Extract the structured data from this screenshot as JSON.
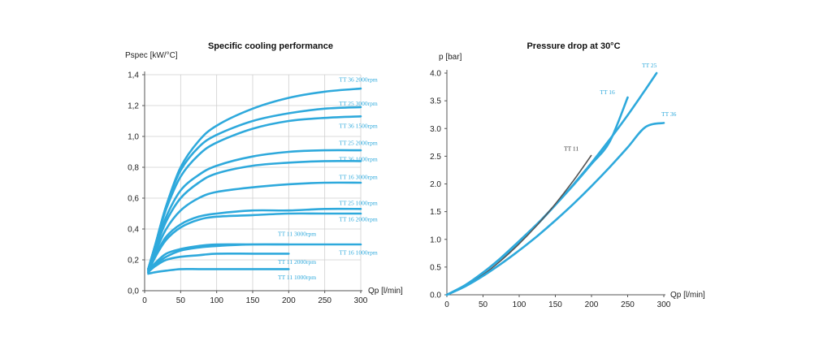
{
  "chart_data": [
    {
      "type": "line",
      "title": "Specific cooling performance",
      "ylabel": "Pspec [kW/°C]",
      "xlabel": "Qp [l/min]",
      "xlim": [
        0,
        300
      ],
      "ylim": [
        0,
        1.4
      ],
      "xticks": [
        "0",
        "50",
        "100",
        "150",
        "200",
        "250",
        "300"
      ],
      "yticks": [
        "0,0",
        "0,2",
        "0,4",
        "0,6",
        "0,8",
        "1,0",
        "1,2",
        "1,4"
      ],
      "grid": true,
      "series_color": "#2ea9dc",
      "series": [
        {
          "name": "TT 36 2000rpm",
          "x": [
            5,
            15,
            30,
            50,
            75,
            100,
            150,
            200,
            250,
            300
          ],
          "y": [
            0.14,
            0.3,
            0.55,
            0.8,
            0.97,
            1.07,
            1.18,
            1.25,
            1.29,
            1.31
          ]
        },
        {
          "name": "TT 25 3000rpm",
          "x": [
            5,
            15,
            30,
            50,
            75,
            100,
            150,
            200,
            250,
            300
          ],
          "y": [
            0.14,
            0.3,
            0.55,
            0.78,
            0.93,
            1.01,
            1.1,
            1.15,
            1.18,
            1.19
          ]
        },
        {
          "name": "TT 36 1500rpm",
          "x": [
            5,
            15,
            30,
            50,
            75,
            100,
            150,
            200,
            250,
            300
          ],
          "y": [
            0.14,
            0.3,
            0.53,
            0.74,
            0.88,
            0.96,
            1.05,
            1.1,
            1.12,
            1.13
          ]
        },
        {
          "name": "TT 25 2000rpm",
          "x": [
            5,
            15,
            30,
            50,
            75,
            100,
            150,
            200,
            250,
            300
          ],
          "y": [
            0.14,
            0.28,
            0.48,
            0.65,
            0.75,
            0.81,
            0.87,
            0.9,
            0.91,
            0.91
          ]
        },
        {
          "name": "TT 36 1000rpm",
          "x": [
            5,
            15,
            30,
            50,
            75,
            100,
            150,
            200,
            250,
            300
          ],
          "y": [
            0.14,
            0.27,
            0.45,
            0.6,
            0.7,
            0.76,
            0.81,
            0.83,
            0.84,
            0.84
          ]
        },
        {
          "name": "TT 16 3000rpm",
          "x": [
            5,
            15,
            30,
            50,
            75,
            100,
            150,
            200,
            250,
            300
          ],
          "y": [
            0.13,
            0.25,
            0.4,
            0.52,
            0.6,
            0.64,
            0.67,
            0.69,
            0.7,
            0.7
          ]
        },
        {
          "name": "TT 25 1000rpm",
          "x": [
            5,
            15,
            30,
            50,
            75,
            100,
            150,
            200,
            250,
            300
          ],
          "y": [
            0.13,
            0.23,
            0.35,
            0.43,
            0.48,
            0.5,
            0.52,
            0.52,
            0.53,
            0.53
          ]
        },
        {
          "name": "TT 16 2000rpm",
          "x": [
            5,
            15,
            30,
            50,
            75,
            100,
            150,
            200,
            250,
            300
          ],
          "y": [
            0.12,
            0.22,
            0.33,
            0.41,
            0.46,
            0.48,
            0.49,
            0.5,
            0.5,
            0.5
          ]
        },
        {
          "name": "TT 11 3000rpm",
          "x": [
            5,
            15,
            30,
            50,
            75,
            100,
            150,
            200
          ],
          "y": [
            0.12,
            0.18,
            0.24,
            0.27,
            0.29,
            0.3,
            0.3,
            0.3
          ]
        },
        {
          "name": "TT 16 1000rpm",
          "x": [
            5,
            15,
            30,
            50,
            75,
            100,
            150,
            200,
            250,
            300
          ],
          "y": [
            0.12,
            0.17,
            0.22,
            0.26,
            0.28,
            0.29,
            0.3,
            0.3,
            0.3,
            0.3
          ]
        },
        {
          "name": "TT 11 2000rpm",
          "x": [
            5,
            15,
            30,
            50,
            75,
            100,
            150,
            200
          ],
          "y": [
            0.12,
            0.16,
            0.2,
            0.22,
            0.23,
            0.24,
            0.24,
            0.24
          ]
        },
        {
          "name": "TT 11 1000rpm",
          "x": [
            5,
            15,
            30,
            50,
            75,
            100,
            150,
            200
          ],
          "y": [
            0.11,
            0.12,
            0.13,
            0.14,
            0.14,
            0.14,
            0.14,
            0.14
          ]
        }
      ]
    },
    {
      "type": "line",
      "title": "Pressure drop at 30°C",
      "ylabel": "p [bar]",
      "xlabel": "Qp [l/min]",
      "xlim": [
        0,
        300
      ],
      "ylim": [
        0,
        4.0
      ],
      "xticks": [
        "0",
        "50",
        "100",
        "150",
        "200",
        "250",
        "300"
      ],
      "yticks": [
        "0.0",
        "0.5",
        "1.0",
        "1.5",
        "2.0",
        "2.5",
        "3.0",
        "3.5",
        "4.0"
      ],
      "grid": false,
      "series_color": "#2ea9dc",
      "series": [
        {
          "name": "TT 25",
          "x": [
            0,
            25,
            50,
            75,
            100,
            125,
            150,
            175,
            200,
            225,
            250,
            275,
            290
          ],
          "y": [
            0,
            0.17,
            0.4,
            0.66,
            0.95,
            1.27,
            1.62,
            1.99,
            2.38,
            2.8,
            3.24,
            3.71,
            4.0
          ]
        },
        {
          "name": "TT 16",
          "x": [
            0,
            25,
            50,
            75,
            100,
            125,
            150,
            175,
            200,
            225,
            250
          ],
          "y": [
            0,
            0.17,
            0.4,
            0.67,
            0.97,
            1.28,
            1.62,
            1.98,
            2.36,
            2.76,
            3.56
          ]
        },
        {
          "name": "TT 11",
          "x": [
            0,
            25,
            50,
            75,
            100,
            125,
            150,
            175,
            200
          ],
          "y": [
            0,
            0.15,
            0.36,
            0.62,
            0.92,
            1.26,
            1.64,
            2.06,
            2.52
          ]
        },
        {
          "name": "TT 36",
          "x": [
            0,
            25,
            50,
            75,
            100,
            125,
            150,
            175,
            200,
            225,
            250,
            275,
            300
          ],
          "y": [
            0,
            0.15,
            0.34,
            0.56,
            0.8,
            1.06,
            1.34,
            1.64,
            1.96,
            2.3,
            2.66,
            3.03,
            3.1
          ]
        }
      ],
      "dark_series": [
        "TT 11"
      ]
    }
  ]
}
